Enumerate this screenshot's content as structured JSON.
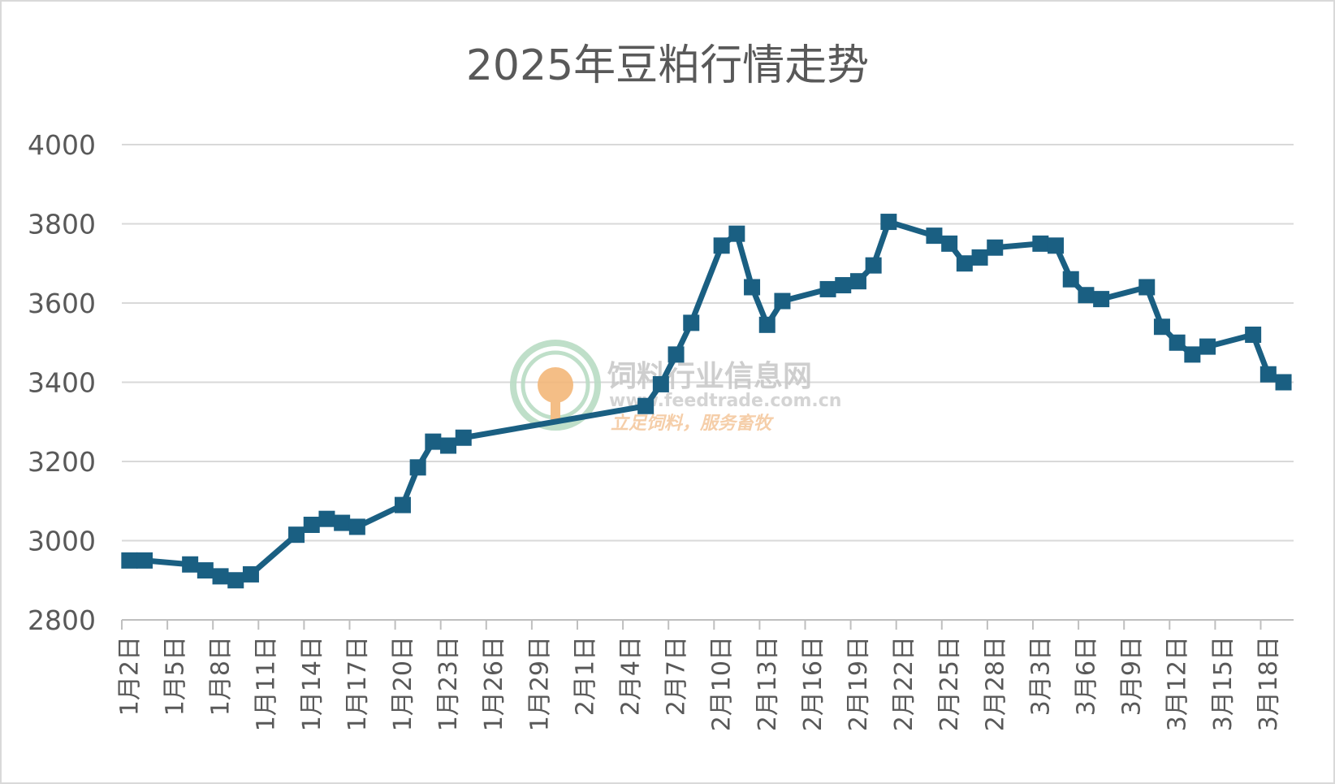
{
  "chart_data": {
    "type": "line",
    "title": "2025年豆粕行情走势",
    "xlabel": "",
    "ylabel": "",
    "ylim": [
      2800,
      4000
    ],
    "yticks": [
      2800,
      3000,
      3200,
      3400,
      3600,
      3800,
      4000
    ],
    "grid": true,
    "legend": "none",
    "x_range": [
      "1月2日",
      "3月20日"
    ],
    "x_tick_labels": [
      "1月2日",
      "1月5日",
      "1月8日",
      "1月11日",
      "1月14日",
      "1月17日",
      "1月20日",
      "1月23日",
      "1月26日",
      "1月29日",
      "2月1日",
      "2月4日",
      "2月7日",
      "2月10日",
      "2月13日",
      "2月16日",
      "2月19日",
      "2月22日",
      "2月25日",
      "2月28日",
      "3月3日",
      "3月6日",
      "3月9日",
      "3月12日",
      "3月15日",
      "3月18日"
    ],
    "series": [
      {
        "color": "#1a5f82",
        "marker": "square",
        "points": [
          {
            "x": "1月2日",
            "y": 2950
          },
          {
            "x": "1月3日",
            "y": 2950
          },
          {
            "x": "1月6日",
            "y": 2940
          },
          {
            "x": "1月7日",
            "y": 2925
          },
          {
            "x": "1月8日",
            "y": 2910
          },
          {
            "x": "1月9日",
            "y": 2900
          },
          {
            "x": "1月10日",
            "y": 2915
          },
          {
            "x": "1月13日",
            "y": 3015
          },
          {
            "x": "1月14日",
            "y": 3040
          },
          {
            "x": "1月15日",
            "y": 3055
          },
          {
            "x": "1月16日",
            "y": 3045
          },
          {
            "x": "1月17日",
            "y": 3035
          },
          {
            "x": "1月20日",
            "y": 3090
          },
          {
            "x": "1月21日",
            "y": 3185
          },
          {
            "x": "1月22日",
            "y": 3250
          },
          {
            "x": "1月23日",
            "y": 3240
          },
          {
            "x": "1月24日",
            "y": 3260
          },
          {
            "x": "2月5日",
            "y": 3340
          },
          {
            "x": "2月6日",
            "y": 3395
          },
          {
            "x": "2月7日",
            "y": 3470
          },
          {
            "x": "2月8日",
            "y": 3550
          },
          {
            "x": "2月10日",
            "y": 3745
          },
          {
            "x": "2月11日",
            "y": 3775
          },
          {
            "x": "2月12日",
            "y": 3640
          },
          {
            "x": "2月13日",
            "y": 3545
          },
          {
            "x": "2月14日",
            "y": 3605
          },
          {
            "x": "2月17日",
            "y": 3635
          },
          {
            "x": "2月18日",
            "y": 3645
          },
          {
            "x": "2月19日",
            "y": 3655
          },
          {
            "x": "2月20日",
            "y": 3695
          },
          {
            "x": "2月21日",
            "y": 3805
          },
          {
            "x": "2月24日",
            "y": 3770
          },
          {
            "x": "2月25日",
            "y": 3750
          },
          {
            "x": "2月26日",
            "y": 3700
          },
          {
            "x": "2月27日",
            "y": 3715
          },
          {
            "x": "2月28日",
            "y": 3740
          },
          {
            "x": "3月3日",
            "y": 3750
          },
          {
            "x": "3月4日",
            "y": 3745
          },
          {
            "x": "3月5日",
            "y": 3660
          },
          {
            "x": "3月6日",
            "y": 3620
          },
          {
            "x": "3月7日",
            "y": 3610
          },
          {
            "x": "3月10日",
            "y": 3640
          },
          {
            "x": "3月11日",
            "y": 3540
          },
          {
            "x": "3月12日",
            "y": 3500
          },
          {
            "x": "3月13日",
            "y": 3470
          },
          {
            "x": "3月14日",
            "y": 3490
          },
          {
            "x": "3月17日",
            "y": 3520
          },
          {
            "x": "3月18日",
            "y": 3420
          },
          {
            "x": "3月19日",
            "y": 3400
          }
        ]
      }
    ]
  },
  "watermark": {
    "name": "饲料行业信息网",
    "url": "www.feedtrade.com.cn",
    "slogan": "立足饲料，服务畜牧",
    "colors": {
      "name": "#c9c9c9",
      "url": "#d0d0d0",
      "slogan": "#f5c9a0",
      "logo_ring": "#b9dcc4",
      "logo_core": "#f3b77a"
    }
  }
}
